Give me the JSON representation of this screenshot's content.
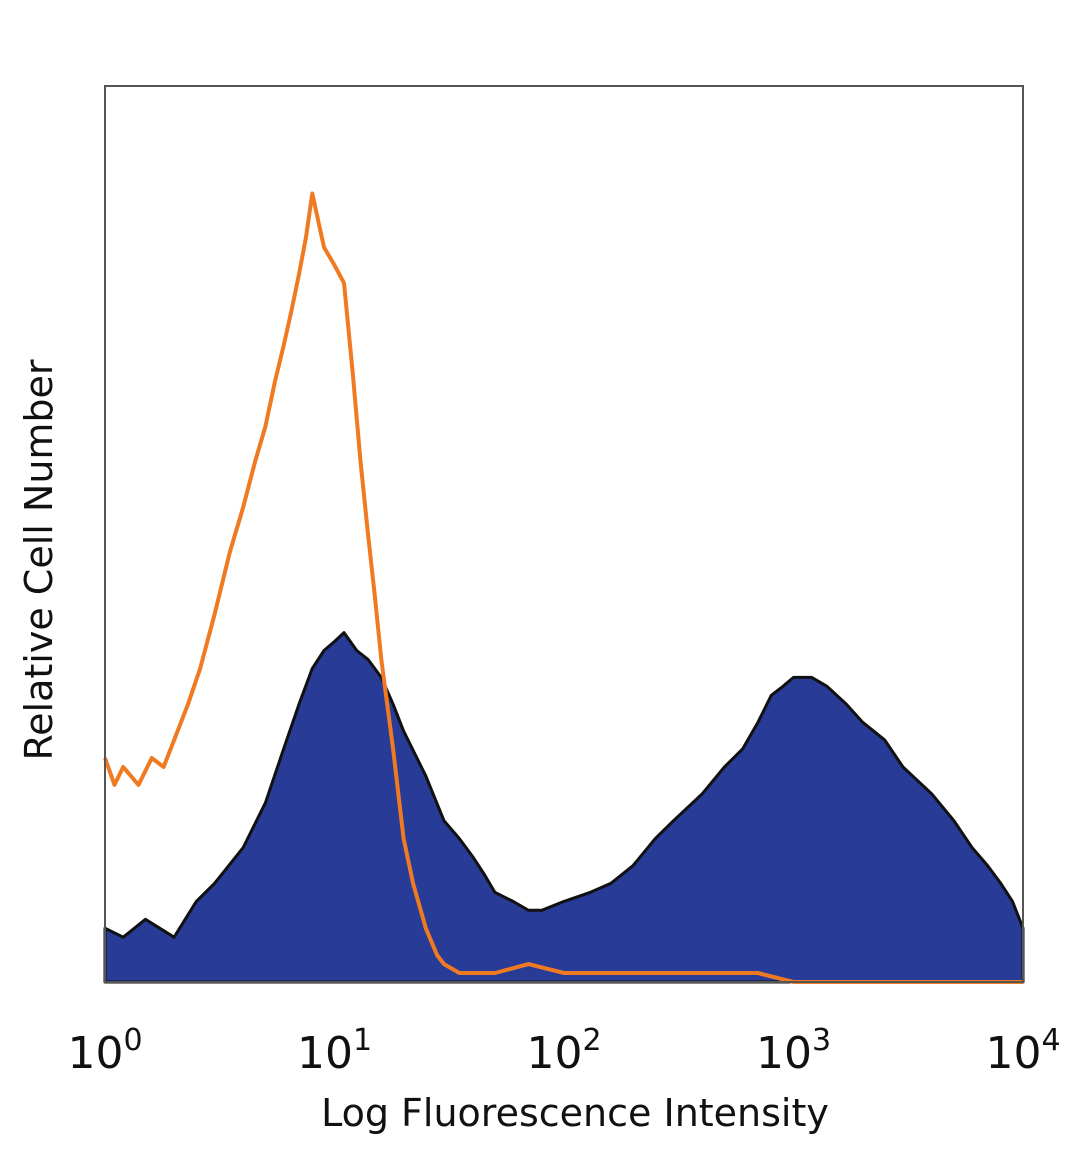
{
  "chart_data": {
    "type": "area",
    "xlabel": "Log Fluorescence Intensity",
    "ylabel": "Relative Cell Number",
    "x_scale": "log",
    "xlim": [
      1,
      10000
    ],
    "ylim": [
      0,
      100
    ],
    "y_ticks_shown": false,
    "grid": false,
    "legend": "none",
    "x_ticks": [
      {
        "base": "10",
        "exp": "0"
      },
      {
        "base": "10",
        "exp": "1"
      },
      {
        "base": "10",
        "exp": "2"
      },
      {
        "base": "10",
        "exp": "3"
      },
      {
        "base": "10",
        "exp": "4"
      }
    ],
    "series": [
      {
        "style": "filled",
        "fill_color": "#283b96",
        "edge_color": "#111111",
        "x": [
          1.0,
          1.2,
          1.5,
          2.0,
          2.5,
          3.0,
          4.0,
          5.0,
          6.0,
          7.0,
          8.0,
          9.0,
          10.0,
          11.0,
          12.5,
          14.0,
          16.0,
          18.0,
          20.0,
          25.0,
          30.0,
          35.0,
          40.0,
          45.0,
          50.0,
          60.0,
          70.0,
          80.0,
          100.0,
          130.0,
          160.0,
          200.0,
          250.0,
          300.0,
          400.0,
          500.0,
          600.0,
          700.0,
          800.0,
          900.0,
          1000.0,
          1200.0,
          1400.0,
          1700.0,
          2000.0,
          2500.0,
          3000.0,
          4000.0,
          5000.0,
          6000.0,
          7000.0,
          8000.0,
          9000.0,
          10000.0
        ],
        "values": [
          6,
          5,
          7,
          5,
          9,
          11,
          15,
          20,
          26,
          31,
          35,
          37,
          38,
          39,
          37,
          36,
          34,
          31,
          28,
          23,
          18,
          16,
          14,
          12,
          10,
          9,
          8,
          8,
          9,
          10,
          11,
          13,
          16,
          18,
          21,
          24,
          26,
          29,
          32,
          33,
          34,
          34,
          33,
          31,
          29,
          27,
          24,
          21,
          18,
          15,
          13,
          11,
          9,
          6
        ]
      },
      {
        "style": "line",
        "color": "#f07a22",
        "x": [
          1.0,
          1.1,
          1.2,
          1.4,
          1.6,
          1.8,
          2.0,
          2.3,
          2.6,
          3.0,
          3.5,
          4.0,
          4.5,
          5.0,
          5.5,
          6.0,
          6.5,
          7.0,
          7.5,
          8.0,
          9.0,
          10.0,
          11.0,
          12.0,
          13.0,
          14.0,
          15.0,
          16.0,
          18.0,
          20.0,
          22.0,
          25.0,
          28.0,
          30.0,
          35.0,
          40.0,
          50.0,
          70.0,
          100.0,
          200.0,
          300.0,
          500.0,
          700.0,
          1000.0,
          10000.0
        ],
        "values": [
          25,
          22,
          24,
          22,
          25,
          24,
          27,
          31,
          35,
          41,
          48,
          53,
          58,
          62,
          67,
          71,
          75,
          79,
          83,
          88,
          82,
          80,
          78,
          68,
          58,
          50,
          43,
          36,
          26,
          16,
          11,
          6,
          3,
          2,
          1,
          1,
          1,
          2,
          1,
          1,
          1,
          1,
          1,
          0,
          0
        ]
      }
    ]
  }
}
